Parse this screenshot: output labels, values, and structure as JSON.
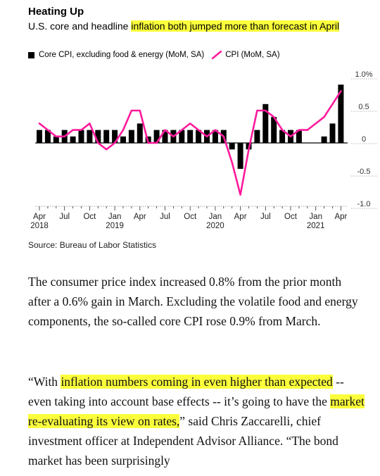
{
  "header": {
    "title": "Heating Up",
    "subtitle_pre": "U.S. core and headline ",
    "subtitle_highlight": "inflation both jumped more than forecast in April"
  },
  "legend": {
    "bar_label": "Core CPI, excluding food & energy (MoM, SA)",
    "line_label": "CPI (MoM, SA)"
  },
  "source": "Source: Bureau of Labor Statistics",
  "colors": {
    "bar": "#000000",
    "line": "#ff1a9c",
    "highlight": "#fbff3b"
  },
  "chart_data": {
    "type": "bar",
    "title": "Heating Up",
    "ylim": [
      -1.0,
      1.0
    ],
    "y_ticks": [
      "1.0%",
      "0.5",
      "0",
      "-0.5",
      "-1.0"
    ],
    "y_tick_values": [
      1.0,
      0.5,
      0,
      -0.5,
      -1.0
    ],
    "x_tick_labels": [
      {
        "index": 0,
        "line1": "Apr",
        "line2": "2018"
      },
      {
        "index": 3,
        "line1": "Jul",
        "line2": ""
      },
      {
        "index": 6,
        "line1": "Oct",
        "line2": ""
      },
      {
        "index": 9,
        "line1": "Jan",
        "line2": "2019"
      },
      {
        "index": 12,
        "line1": "Apr",
        "line2": ""
      },
      {
        "index": 15,
        "line1": "Jul",
        "line2": ""
      },
      {
        "index": 18,
        "line1": "Oct",
        "line2": ""
      },
      {
        "index": 21,
        "line1": "Jan",
        "line2": "2020"
      },
      {
        "index": 24,
        "line1": "Apr",
        "line2": ""
      },
      {
        "index": 27,
        "line1": "Jul",
        "line2": ""
      },
      {
        "index": 30,
        "line1": "Oct",
        "line2": ""
      },
      {
        "index": 33,
        "line1": "Jan",
        "line2": "2021"
      },
      {
        "index": 36,
        "line1": "Apr",
        "line2": ""
      }
    ],
    "grid": false,
    "legend_position": "top-left",
    "series": [
      {
        "name": "Core CPI, excluding food & energy (MoM, SA)",
        "type": "bar",
        "values": [
          0.2,
          0.2,
          0.1,
          0.2,
          0.1,
          0.2,
          0.2,
          0.2,
          0.2,
          0.2,
          0.1,
          0.2,
          0.3,
          0.1,
          0.2,
          0.2,
          0.2,
          0.2,
          0.2,
          0.2,
          0.2,
          0.2,
          0.2,
          -0.1,
          -0.4,
          -0.1,
          0.2,
          0.6,
          0.4,
          0.2,
          0.2,
          0.2,
          0.0,
          0.0,
          0.1,
          0.3,
          0.9
        ]
      },
      {
        "name": "CPI (MoM, SA)",
        "type": "line",
        "values": [
          0.3,
          0.2,
          0.1,
          0.1,
          0.2,
          0.2,
          0.3,
          0.0,
          -0.1,
          0.0,
          0.2,
          0.5,
          0.5,
          0.0,
          0.0,
          0.2,
          0.1,
          0.2,
          0.3,
          0.2,
          0.1,
          0.2,
          0.1,
          -0.3,
          -0.8,
          -0.1,
          0.5,
          0.5,
          0.4,
          0.2,
          0.1,
          0.2,
          0.2,
          0.3,
          0.4,
          0.6,
          0.8
        ]
      }
    ]
  },
  "article": {
    "p1": "The consumer price index increased 0.8% from the prior month after a 0.6% gain in March. Excluding the volatile food and energy components, the so-called core CPI rose 0.9% from March.",
    "p2_a": "“With ",
    "p2_hl1": "inflation numbers coming in even higher than expected",
    "p2_b": " -- even taking into account base effects -- it’s going to have the ",
    "p2_hl2": "market re-evaluating its view on rates,",
    "p2_c": "” said Chris Zaccarelli, chief investment officer at Independent Advisor Alliance. “The bond market has been surprisingly"
  }
}
